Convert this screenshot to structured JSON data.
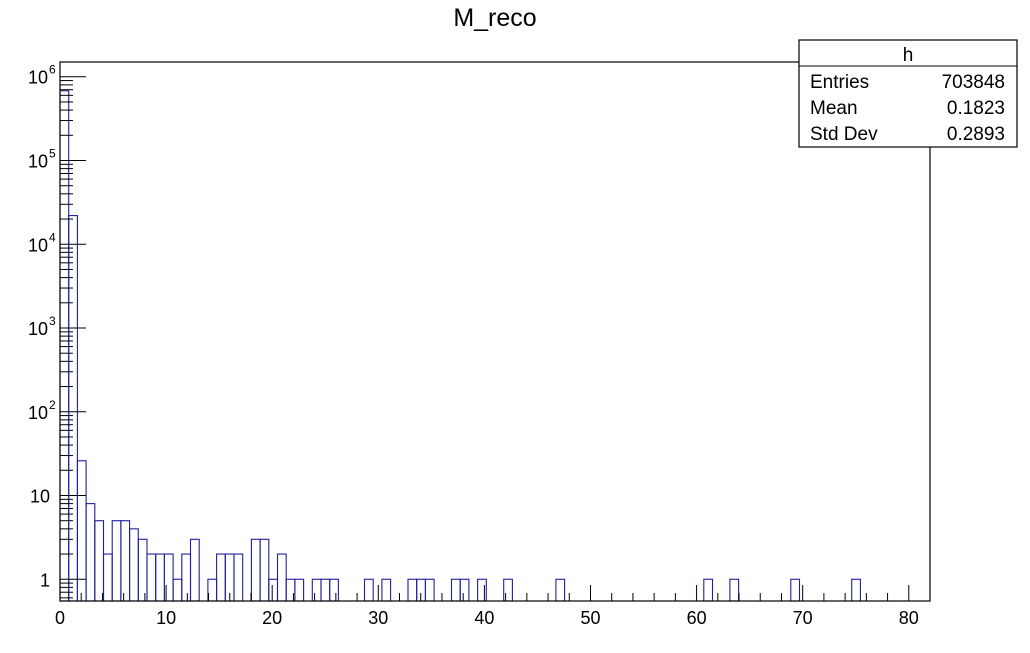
{
  "chart_data": {
    "type": "bar",
    "histogram": true,
    "title": "M_reco",
    "xlabel": "",
    "ylabel": "",
    "xlim": [
      0,
      82
    ],
    "ylim": [
      0.55,
      1500000
    ],
    "y_scale": "log",
    "grid": false,
    "x_ticks": [
      0,
      10,
      20,
      30,
      40,
      50,
      60,
      70,
      80
    ],
    "y_ticks": [
      {
        "value": 1,
        "base": "1",
        "exp": ""
      },
      {
        "value": 10,
        "base": "10",
        "exp": ""
      },
      {
        "value": 100,
        "base": "10",
        "exp": "2"
      },
      {
        "value": 1000,
        "base": "10",
        "exp": "3"
      },
      {
        "value": 10000,
        "base": "10",
        "exp": "4"
      },
      {
        "value": 100000,
        "base": "10",
        "exp": "5"
      },
      {
        "value": 1000000,
        "base": "10",
        "exp": "6"
      }
    ],
    "bin_width": 0.82,
    "bins": [
      [
        0,
        680000
      ],
      [
        0.82,
        22000
      ],
      [
        1.64,
        26
      ],
      [
        2.46,
        8
      ],
      [
        3.28,
        5
      ],
      [
        4.1,
        2
      ],
      [
        4.92,
        5
      ],
      [
        5.74,
        5
      ],
      [
        6.56,
        4
      ],
      [
        7.38,
        3
      ],
      [
        8.2,
        2
      ],
      [
        9.02,
        2
      ],
      [
        9.84,
        2
      ],
      [
        10.66,
        1
      ],
      [
        11.48,
        2
      ],
      [
        12.3,
        3
      ],
      [
        13.94,
        1
      ],
      [
        14.76,
        2
      ],
      [
        15.58,
        2
      ],
      [
        16.4,
        2
      ],
      [
        18.04,
        3
      ],
      [
        18.86,
        3
      ],
      [
        19.68,
        1
      ],
      [
        20.5,
        2
      ],
      [
        21.32,
        1
      ],
      [
        22.14,
        1
      ],
      [
        23.78,
        1
      ],
      [
        24.6,
        1
      ],
      [
        25.42,
        1
      ],
      [
        28.7,
        1
      ],
      [
        30.34,
        1
      ],
      [
        32.8,
        1
      ],
      [
        33.62,
        1
      ],
      [
        34.44,
        1
      ],
      [
        36.9,
        1
      ],
      [
        37.72,
        1
      ],
      [
        39.36,
        1
      ],
      [
        41.82,
        1
      ],
      [
        46.74,
        1
      ],
      [
        60.68,
        1
      ],
      [
        63.14,
        1
      ],
      [
        68.88,
        1
      ],
      [
        74.62,
        1
      ]
    ],
    "stats": {
      "name": "h",
      "rows": [
        {
          "label": "Entries",
          "value": "703848"
        },
        {
          "label": "Mean",
          "value": "0.1823"
        },
        {
          "label": "Std Dev",
          "value": "0.2893"
        }
      ]
    },
    "line_color": "#1f1fa0"
  }
}
